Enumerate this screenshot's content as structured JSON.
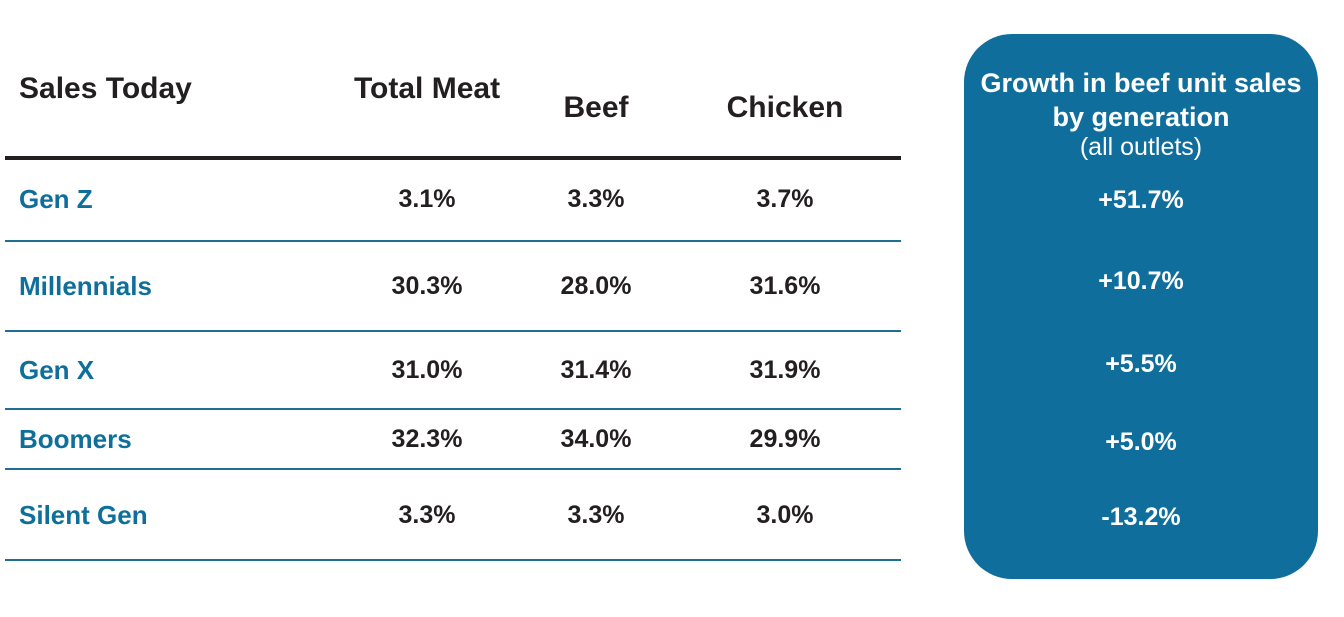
{
  "table": {
    "title": "Sales Today",
    "columns": [
      "Total Meat",
      "Beef",
      "Chicken"
    ],
    "rows": [
      {
        "label": "Gen Z",
        "values": [
          "3.1%",
          "3.3%",
          "3.7%"
        ]
      },
      {
        "label": "Millennials",
        "values": [
          "30.3%",
          "28.0%",
          "31.6%"
        ]
      },
      {
        "label": "Gen X",
        "values": [
          "31.0%",
          "31.4%",
          "31.9%"
        ]
      },
      {
        "label": "Boomers",
        "values": [
          "32.3%",
          "34.0%",
          "29.9%"
        ]
      },
      {
        "label": "Silent Gen",
        "values": [
          "3.3%",
          "3.3%",
          "3.0%"
        ]
      }
    ]
  },
  "panel": {
    "title": "Growth in beef unit sales by generation",
    "subtitle": "(all outlets)",
    "values": [
      "+51.7%",
      "+10.7%",
      "+5.5%",
      "+5.0%",
      "-13.2%"
    ]
  },
  "colors": {
    "row_label": "#0f6f9b",
    "panel_bg": "#106e9c",
    "text_dark": "#231f20",
    "rule": "#1f6f93"
  },
  "chart_data": {
    "type": "table",
    "title": "Sales Today",
    "categories": [
      "Gen Z",
      "Millennials",
      "Gen X",
      "Boomers",
      "Silent Gen"
    ],
    "series": [
      {
        "name": "Total Meat",
        "values": [
          3.1,
          30.3,
          31.0,
          32.3,
          3.3
        ]
      },
      {
        "name": "Beef",
        "values": [
          3.3,
          28.0,
          31.4,
          34.0,
          3.3
        ]
      },
      {
        "name": "Chicken",
        "values": [
          3.7,
          31.6,
          31.9,
          29.9,
          3.0
        ]
      },
      {
        "name": "Growth in beef unit sales by generation",
        "values": [
          51.7,
          10.7,
          5.5,
          5.0,
          -13.2
        ]
      }
    ]
  }
}
